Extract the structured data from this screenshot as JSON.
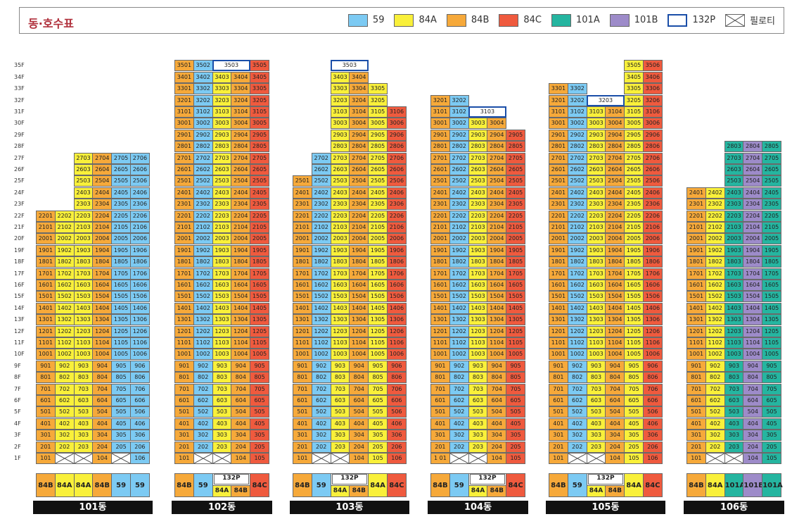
{
  "header": {
    "title": "동·호수표",
    "legend": [
      {
        "label": "59",
        "color": "#7ccaf3",
        "icon": "swatch"
      },
      {
        "label": "84A",
        "color": "#f9f03a",
        "icon": "swatch"
      },
      {
        "label": "84B",
        "color": "#f6a93a",
        "icon": "swatch"
      },
      {
        "label": "84C",
        "color": "#ef5a3e",
        "icon": "swatch"
      },
      {
        "label": "101A",
        "color": "#25b5a0",
        "icon": "swatch"
      },
      {
        "label": "101B",
        "color": "#9d8bc9",
        "icon": "swatch"
      },
      {
        "label": "132P",
        "color": "#ffffff",
        "icon": "outline-swatch"
      },
      {
        "label": "필로티",
        "color": "#ffffff",
        "icon": "cross-swatch"
      }
    ]
  },
  "floors": [
    "1F",
    "2F",
    "3F",
    "4F",
    "5F",
    "6F",
    "7F",
    "8F",
    "9F",
    "10F",
    "11F",
    "12F",
    "13F",
    "14F",
    "15F",
    "16F",
    "17F",
    "18F",
    "19F",
    "20F",
    "21F",
    "22F",
    "23F",
    "24F",
    "25F",
    "26F",
    "27F",
    "28F",
    "29F",
    "30F",
    "31F",
    "32F",
    "33F",
    "34F",
    "35F"
  ],
  "buildings": [
    {
      "name": "101동",
      "types": [
        "84B",
        "84A",
        "84A",
        "84B",
        "59",
        "59"
      ],
      "units": [
        {
          "line": 1,
          "type": "84B",
          "floors": [
            1,
            22
          ],
          "pilotis": []
        },
        {
          "line": 2,
          "type": "84A",
          "floors": [
            2,
            22
          ],
          "pilotis": [
            1
          ]
        },
        {
          "line": 3,
          "type": "84A",
          "floors": [
            2,
            27
          ],
          "pilotis": [
            1
          ]
        },
        {
          "line": 4,
          "type": "84B",
          "floors": [
            1,
            27
          ],
          "pilotis": []
        },
        {
          "line": 5,
          "type": "59",
          "floors": [
            2,
            27
          ],
          "pilotis": [
            1
          ]
        },
        {
          "line": 6,
          "type": "59",
          "floors": [
            1,
            27
          ],
          "pilotis": []
        }
      ],
      "penthouse": null
    },
    {
      "name": "102동",
      "types": [
        "84B",
        "59",
        "132P",
        "84A",
        "84B",
        "84C"
      ],
      "units": [
        {
          "line": 1,
          "type": "84B",
          "floors": [
            1,
            35
          ],
          "pilotis": []
        },
        {
          "line": 2,
          "type": "59",
          "floors": [
            2,
            35
          ],
          "pilotis": [
            1
          ]
        },
        {
          "line": 3,
          "type": "84A",
          "floors": [
            2,
            34
          ],
          "pilotis": [
            1
          ]
        },
        {
          "line": 4,
          "type": "84B",
          "floors": [
            1,
            34
          ],
          "pilotis": []
        },
        {
          "line": 5,
          "type": "84C",
          "floors": [
            1,
            35
          ],
          "pilotis": []
        }
      ],
      "penthouse": {
        "label": "3503",
        "floor": 35,
        "span": [
          3,
          4
        ]
      }
    },
    {
      "name": "103동",
      "types": [
        "84B",
        "59",
        "132P",
        "84A",
        "84B",
        "84A",
        "84C"
      ],
      "units": [
        {
          "line": 1,
          "type": "84B",
          "floors": [
            1,
            25
          ],
          "pilotis": []
        },
        {
          "line": 2,
          "type": "59",
          "floors": [
            2,
            27
          ],
          "pilotis": [
            1
          ]
        },
        {
          "line": 3,
          "type": "84A",
          "floors": [
            2,
            34
          ],
          "pilotis": [
            1
          ]
        },
        {
          "line": 4,
          "type": "84B",
          "floors": [
            1,
            34
          ],
          "pilotis": []
        },
        {
          "line": 5,
          "type": "84A",
          "floors": [
            1,
            33
          ],
          "pilotis": []
        },
        {
          "line": 6,
          "type": "84C",
          "floors": [
            1,
            31
          ],
          "pilotis": []
        }
      ],
      "penthouse": {
        "label": "3503",
        "floor": 35,
        "span": [
          3,
          4
        ]
      }
    },
    {
      "name": "104동",
      "types": [
        "84B",
        "59",
        "132P",
        "84A",
        "84B",
        "84C"
      ],
      "units": [
        {
          "line": 1,
          "type": "84B",
          "floors": [
            1,
            32
          ],
          "pilotis": [],
          "label1": "1 01"
        },
        {
          "line": 2,
          "type": "59",
          "floors": [
            2,
            32
          ],
          "pilotis": [
            1
          ]
        },
        {
          "line": 3,
          "type": "84A",
          "floors": [
            2,
            30
          ],
          "pilotis": [
            1
          ]
        },
        {
          "line": 4,
          "type": "84B",
          "floors": [
            1,
            30
          ],
          "pilotis": []
        },
        {
          "line": 5,
          "type": "84C",
          "floors": [
            1,
            29
          ],
          "pilotis": []
        }
      ],
      "penthouse": {
        "label": "3103",
        "floor": 31,
        "span": [
          3,
          4
        ]
      }
    },
    {
      "name": "105동",
      "types": [
        "84B",
        "59",
        "132P",
        "84A",
        "84B",
        "84A",
        "84C"
      ],
      "units": [
        {
          "line": 1,
          "type": "84B",
          "floors": [
            1,
            33
          ],
          "pilotis": []
        },
        {
          "line": 2,
          "type": "59",
          "floors": [
            2,
            33
          ],
          "pilotis": [
            1
          ]
        },
        {
          "line": 3,
          "type": "84A",
          "floors": [
            2,
            31
          ],
          "pilotis": [
            1
          ]
        },
        {
          "line": 4,
          "type": "84B",
          "floors": [
            1,
            31
          ],
          "pilotis": []
        },
        {
          "line": 5,
          "type": "84A",
          "floors": [
            1,
            35
          ],
          "pilotis": []
        },
        {
          "line": 6,
          "type": "84C",
          "floors": [
            1,
            35
          ],
          "pilotis": []
        }
      ],
      "penthouse": {
        "label": "3203",
        "floor": 32,
        "span": [
          3,
          4
        ]
      }
    },
    {
      "name": "106동",
      "types": [
        "84B",
        "84A",
        "101A",
        "101B",
        "101A"
      ],
      "units": [
        {
          "line": 1,
          "type": "84B",
          "floors": [
            1,
            24
          ],
          "pilotis": []
        },
        {
          "line": 2,
          "type": "84A",
          "floors": [
            2,
            24
          ],
          "pilotis": [
            1
          ]
        },
        {
          "line": 3,
          "type": "101A",
          "floors": [
            2,
            28
          ],
          "pilotis": [
            1
          ]
        },
        {
          "line": 4,
          "type": "101B",
          "floors": [
            1,
            28
          ],
          "pilotis": []
        },
        {
          "line": 5,
          "type": "101A",
          "floors": [
            1,
            28
          ],
          "pilotis": []
        }
      ],
      "penthouse": null
    }
  ]
}
